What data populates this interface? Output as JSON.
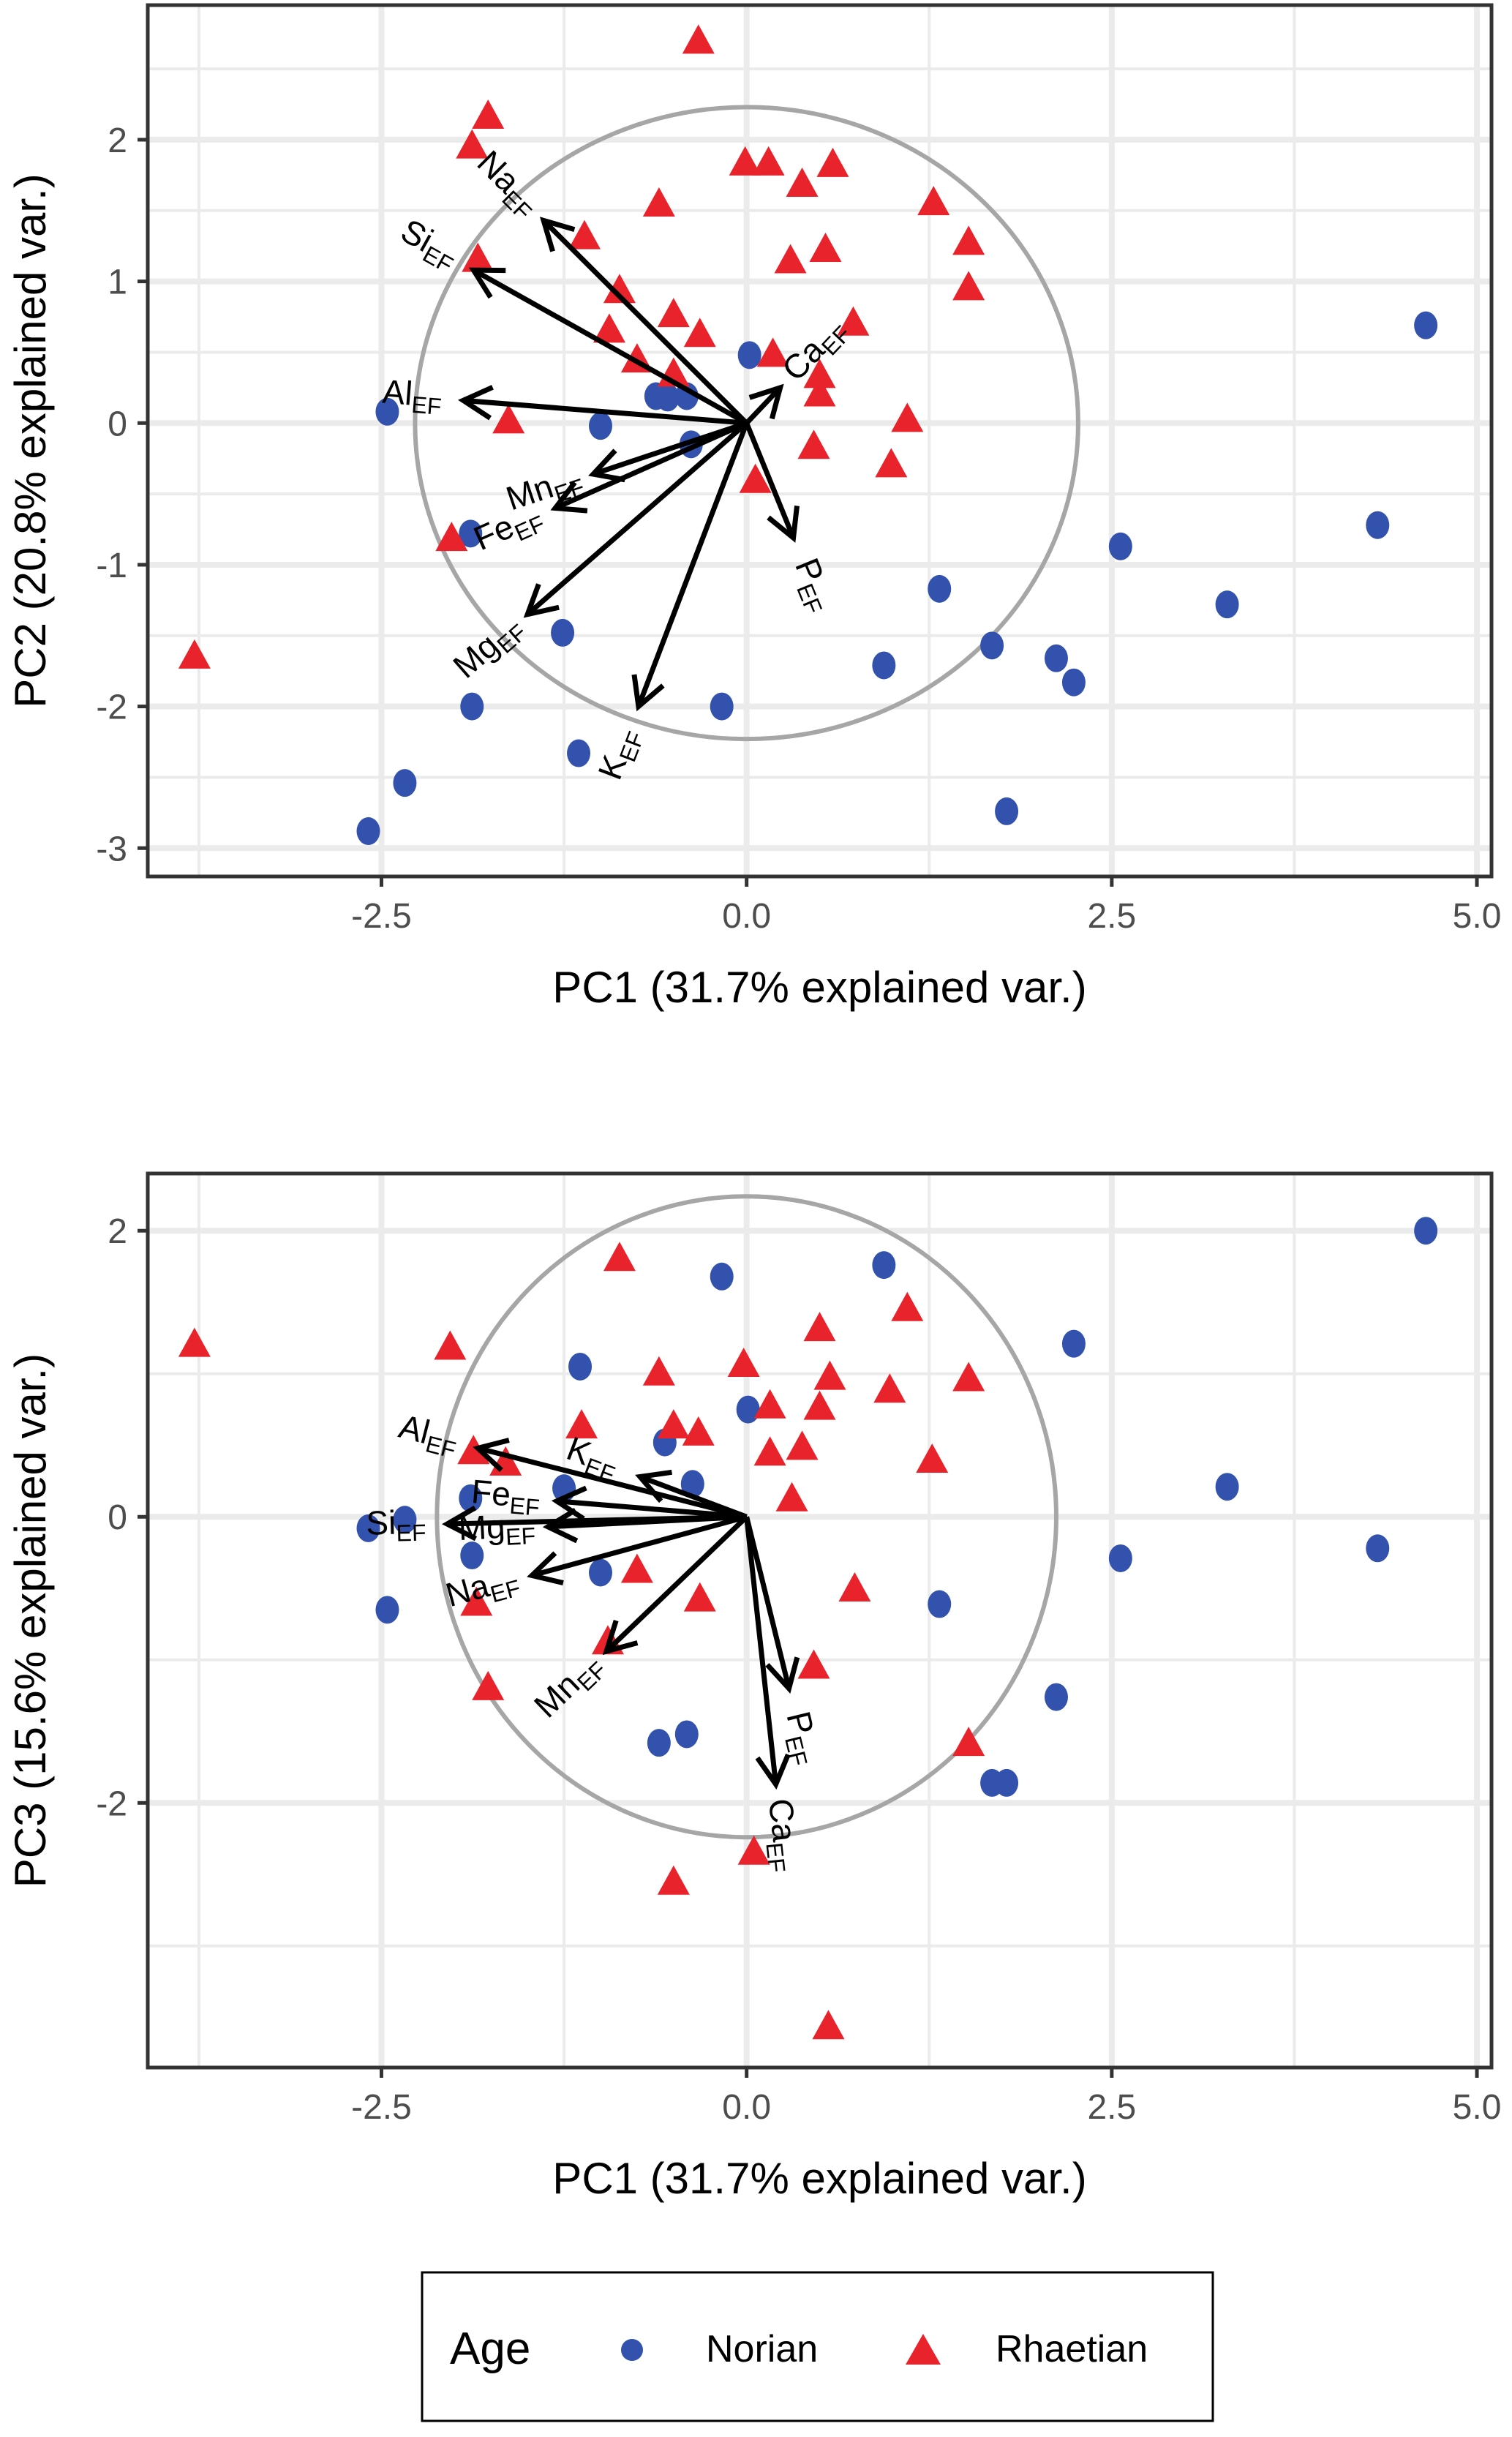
{
  "chart_data": [
    {
      "type": "scatter",
      "subtype": "pca-biplot",
      "title": "",
      "xlabel": "PC1 (31.7% explained var.)",
      "ylabel": "PC2 (20.8% explained var.)",
      "xlim": [
        -4.1,
        5.1
      ],
      "ylim": [
        -3.2,
        2.95
      ],
      "xticks": [
        -2.5,
        0.0,
        2.5,
        5.0
      ],
      "xtick_labels": [
        "-2.5",
        "0.0",
        "2.5",
        "5.0"
      ],
      "yticks": [
        -3,
        -2,
        -1,
        0,
        1,
        2
      ],
      "ytick_labels": [
        "-3",
        "-2",
        "-1",
        "0",
        "1",
        "2"
      ],
      "grid": true,
      "correlation_circle": {
        "rx": 2.27,
        "ry": 2.23
      },
      "series": [
        {
          "name": "Norian",
          "marker": "circle",
          "points": [
            [
              4.65,
              0.69
            ],
            [
              -2.46,
              0.08
            ],
            [
              -1.89,
              -0.78
            ],
            [
              -0.62,
              0.19
            ],
            [
              -0.54,
              0.18
            ],
            [
              -0.41,
              0.19
            ],
            [
              -1.0,
              -0.02
            ],
            [
              -0.38,
              -0.15
            ],
            [
              0.02,
              0.48
            ],
            [
              -1.26,
              -1.48
            ],
            [
              -1.88,
              -2.0
            ],
            [
              -1.15,
              -2.33
            ],
            [
              -2.34,
              -2.54
            ],
            [
              -2.59,
              -2.88
            ],
            [
              -0.17,
              -2.0
            ],
            [
              0.94,
              -1.71
            ],
            [
              1.32,
              -1.17
            ],
            [
              2.56,
              -0.87
            ],
            [
              1.68,
              -1.57
            ],
            [
              2.12,
              -1.66
            ],
            [
              2.24,
              -1.83
            ],
            [
              1.78,
              -2.74
            ],
            [
              3.29,
              -1.28
            ],
            [
              4.32,
              -0.72
            ]
          ]
        },
        {
          "name": "Rhaetian",
          "marker": "triangle",
          "points": [
            [
              -0.33,
              2.69
            ],
            [
              -1.77,
              2.16
            ],
            [
              -1.88,
              1.95
            ],
            [
              -0.01,
              1.83
            ],
            [
              0.15,
              1.83
            ],
            [
              0.59,
              1.82
            ],
            [
              0.38,
              1.68
            ],
            [
              -0.6,
              1.54
            ],
            [
              1.28,
              1.55
            ],
            [
              -1.11,
              1.31
            ],
            [
              1.52,
              1.27
            ],
            [
              0.54,
              1.22
            ],
            [
              -1.84,
              1.15
            ],
            [
              0.3,
              1.14
            ],
            [
              1.52,
              0.95
            ],
            [
              -0.87,
              0.93
            ],
            [
              -0.5,
              0.76
            ],
            [
              -0.94,
              0.65
            ],
            [
              -0.32,
              0.62
            ],
            [
              0.73,
              0.7
            ],
            [
              -0.75,
              0.44
            ],
            [
              0.18,
              0.48
            ],
            [
              -0.5,
              0.34
            ],
            [
              0.5,
              0.33
            ],
            [
              0.5,
              0.2
            ],
            [
              -1.63,
              0.01
            ],
            [
              1.1,
              0.02
            ],
            [
              0.46,
              -0.17
            ],
            [
              0.99,
              -0.3
            ],
            [
              0.06,
              -0.41
            ],
            [
              -2.02,
              -0.82
            ],
            [
              -3.78,
              -1.65
            ]
          ]
        }
      ],
      "loadings": [
        {
          "label": "Na",
          "sub": "EF",
          "x": -1.39,
          "y": 1.43
        },
        {
          "label": "Si",
          "sub": "EF",
          "x": -1.87,
          "y": 1.08
        },
        {
          "label": "Al",
          "sub": "EF",
          "x": -1.94,
          "y": 0.16
        },
        {
          "label": "Mn",
          "sub": "EF",
          "x": -1.05,
          "y": -0.36
        },
        {
          "label": "Fe",
          "sub": "EF",
          "x": -1.31,
          "y": -0.6
        },
        {
          "label": "Mg",
          "sub": "EF",
          "x": -1.5,
          "y": -1.35
        },
        {
          "label": "K",
          "sub": "EF",
          "x": -0.74,
          "y": -2.0
        },
        {
          "label": "P",
          "sub": "EF",
          "x": 0.32,
          "y": -0.81
        },
        {
          "label": "Ca",
          "sub": "EF",
          "x": 0.23,
          "y": 0.25
        }
      ]
    },
    {
      "type": "scatter",
      "subtype": "pca-biplot",
      "title": "",
      "xlabel": "PC1 (31.7% explained var.)",
      "ylabel": "PC3 (15.6% explained var.)",
      "xlim": [
        -4.1,
        5.1
      ],
      "ylim": [
        -3.85,
        2.4
      ],
      "xticks": [
        -2.5,
        0.0,
        2.5,
        5.0
      ],
      "xtick_labels": [
        "-2.5",
        "0.0",
        "2.5",
        "5.0"
      ],
      "yticks": [
        -2,
        0,
        2
      ],
      "ytick_labels": [
        "-2",
        "0",
        "2"
      ],
      "minor_yticks": [
        -3,
        -1,
        1
      ],
      "grid": true,
      "correlation_circle": {
        "rx": 2.12,
        "ry": 2.24
      },
      "series": [
        {
          "name": "Norian",
          "marker": "circle",
          "points": [
            [
              4.65,
              2.0
            ],
            [
              0.94,
              1.76
            ],
            [
              -0.17,
              1.68
            ],
            [
              2.24,
              1.21
            ],
            [
              -1.14,
              1.05
            ],
            [
              0.01,
              0.75
            ],
            [
              -0.56,
              0.52
            ],
            [
              -0.37,
              0.23
            ],
            [
              3.29,
              0.21
            ],
            [
              -1.25,
              0.2
            ],
            [
              -1.89,
              0.13
            ],
            [
              -2.34,
              -0.02
            ],
            [
              -2.59,
              -0.08
            ],
            [
              4.32,
              -0.22
            ],
            [
              2.56,
              -0.29
            ],
            [
              -1.88,
              -0.27
            ],
            [
              -1.0,
              -0.39
            ],
            [
              -2.46,
              -0.65
            ],
            [
              1.32,
              -0.61
            ],
            [
              2.12,
              -1.26
            ],
            [
              -0.41,
              -1.52
            ],
            [
              -0.6,
              -1.58
            ],
            [
              1.68,
              -1.86
            ],
            [
              1.78,
              -1.86
            ]
          ]
        },
        {
          "name": "Rhaetian",
          "marker": "triangle",
          "points": [
            [
              -3.78,
              1.2
            ],
            [
              -0.87,
              1.8
            ],
            [
              -2.03,
              1.18
            ],
            [
              1.1,
              1.45
            ],
            [
              0.5,
              1.31
            ],
            [
              1.52,
              0.96
            ],
            [
              0.57,
              0.97
            ],
            [
              -0.6,
              1.0
            ],
            [
              -0.02,
              1.06
            ],
            [
              0.98,
              0.88
            ],
            [
              0.16,
              0.77
            ],
            [
              0.5,
              0.76
            ],
            [
              -1.13,
              0.63
            ],
            [
              -0.5,
              0.63
            ],
            [
              -0.33,
              0.58
            ],
            [
              0.16,
              0.44
            ],
            [
              0.38,
              0.48
            ],
            [
              1.27,
              0.39
            ],
            [
              -1.87,
              0.45
            ],
            [
              -1.65,
              0.37
            ],
            [
              0.31,
              0.12
            ],
            [
              0.74,
              -0.51
            ],
            [
              -0.75,
              -0.38
            ],
            [
              -1.85,
              -0.61
            ],
            [
              -0.32,
              -0.58
            ],
            [
              -0.95,
              -0.88
            ],
            [
              0.46,
              -1.05
            ],
            [
              -1.77,
              -1.2
            ],
            [
              1.52,
              -1.59
            ],
            [
              0.05,
              -2.35
            ],
            [
              -0.5,
              -2.56
            ],
            [
              0.56,
              -3.57
            ]
          ]
        }
      ],
      "loadings": [
        {
          "label": "Al",
          "sub": "EF",
          "x": -1.84,
          "y": 0.48
        },
        {
          "label": "K",
          "sub": "EF",
          "x": -0.73,
          "y": 0.28
        },
        {
          "label": "Fe",
          "sub": "EF",
          "x": -1.3,
          "y": 0.11
        },
        {
          "label": "Si",
          "sub": "EF",
          "x": -2.05,
          "y": -0.05
        },
        {
          "label": "Mg",
          "sub": "EF",
          "x": -1.36,
          "y": -0.07
        },
        {
          "label": "Na",
          "sub": "EF",
          "x": -1.47,
          "y": -0.41
        },
        {
          "label": "Mn",
          "sub": "EF",
          "x": -0.96,
          "y": -0.94
        },
        {
          "label": "P",
          "sub": "EF",
          "x": 0.29,
          "y": -1.2
        },
        {
          "label": "Ca",
          "sub": "EF",
          "x": 0.2,
          "y": -1.87
        }
      ]
    }
  ],
  "legend": {
    "title": "Age",
    "placement": "bottom-center",
    "items": [
      {
        "label": "Norian",
        "marker": "circle",
        "color": "#3352AE"
      },
      {
        "label": "Rhaetian",
        "marker": "triangle",
        "color": "#E8232B"
      }
    ]
  },
  "colors": {
    "norian": "#3352AE",
    "rhaetian": "#E8232B",
    "grid": "#EBEBEB",
    "circle": "#A6A6A6",
    "arrow": "#000000",
    "panel_border": "#333333"
  }
}
